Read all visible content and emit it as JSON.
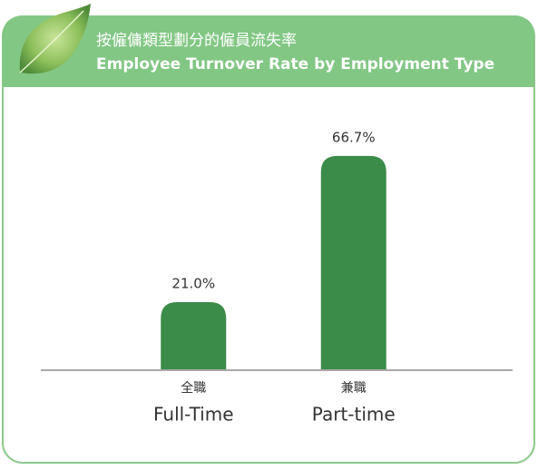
{
  "chart_data": {
    "type": "bar",
    "title": "按僱傭類型劃分的僱員流失率",
    "subtitle": "Employee Turnover Rate by Employment Type",
    "categories": [
      "Full-Time",
      "Part-time"
    ],
    "categories_zh": [
      "全職",
      "兼職"
    ],
    "values": [
      21.0,
      66.7
    ],
    "value_labels": [
      "21.0%",
      "66.7%"
    ],
    "color": "#3b8b49",
    "ylim": [
      0,
      80
    ]
  }
}
